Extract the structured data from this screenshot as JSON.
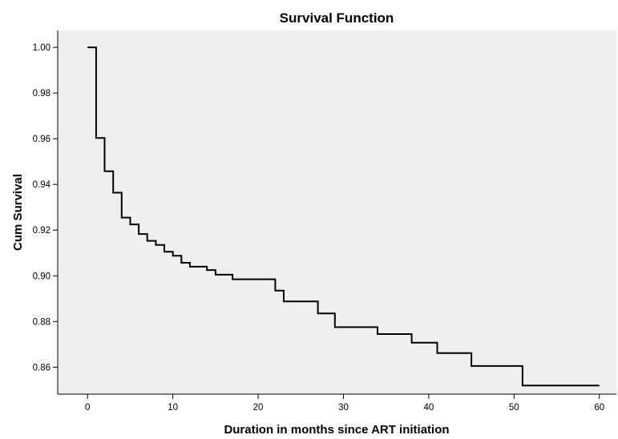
{
  "chart_data": {
    "type": "line",
    "subtype": "step",
    "title": "Survival Function",
    "xlabel": "Duration in months since ART initiation",
    "ylabel": "Cum Survival",
    "xlim": [
      -3.5,
      62
    ],
    "ylim": [
      0.8482,
      1.0074
    ],
    "xticks": [
      0,
      10,
      20,
      30,
      40,
      50,
      60
    ],
    "yticks": [
      0.86,
      0.88,
      0.9,
      0.92,
      0.94,
      0.96,
      0.98,
      1.0
    ],
    "ytick_labels": [
      "0.86",
      "0.88",
      "0.90",
      "0.92",
      "0.94",
      "0.96",
      "0.98",
      "1.00"
    ],
    "grid": false,
    "colors": {
      "plot_background": "#efefef",
      "line": "#000000",
      "axis": "#000000"
    },
    "series": [
      {
        "x": [
          0,
          1,
          2,
          3,
          4,
          5,
          6,
          7,
          8,
          9,
          10,
          11,
          12,
          14,
          15,
          17,
          22,
          23,
          27,
          29,
          34,
          38,
          41,
          45,
          51,
          60
        ],
        "y": [
          1.0,
          0.9603,
          0.9458,
          0.9364,
          0.9255,
          0.9225,
          0.9183,
          0.9153,
          0.9135,
          0.9105,
          0.9088,
          0.9057,
          0.904,
          0.9025,
          0.9005,
          0.8985,
          0.8935,
          0.8888,
          0.8835,
          0.8775,
          0.8745,
          0.8707,
          0.8662,
          0.8605,
          0.852,
          0.852
        ]
      }
    ]
  }
}
